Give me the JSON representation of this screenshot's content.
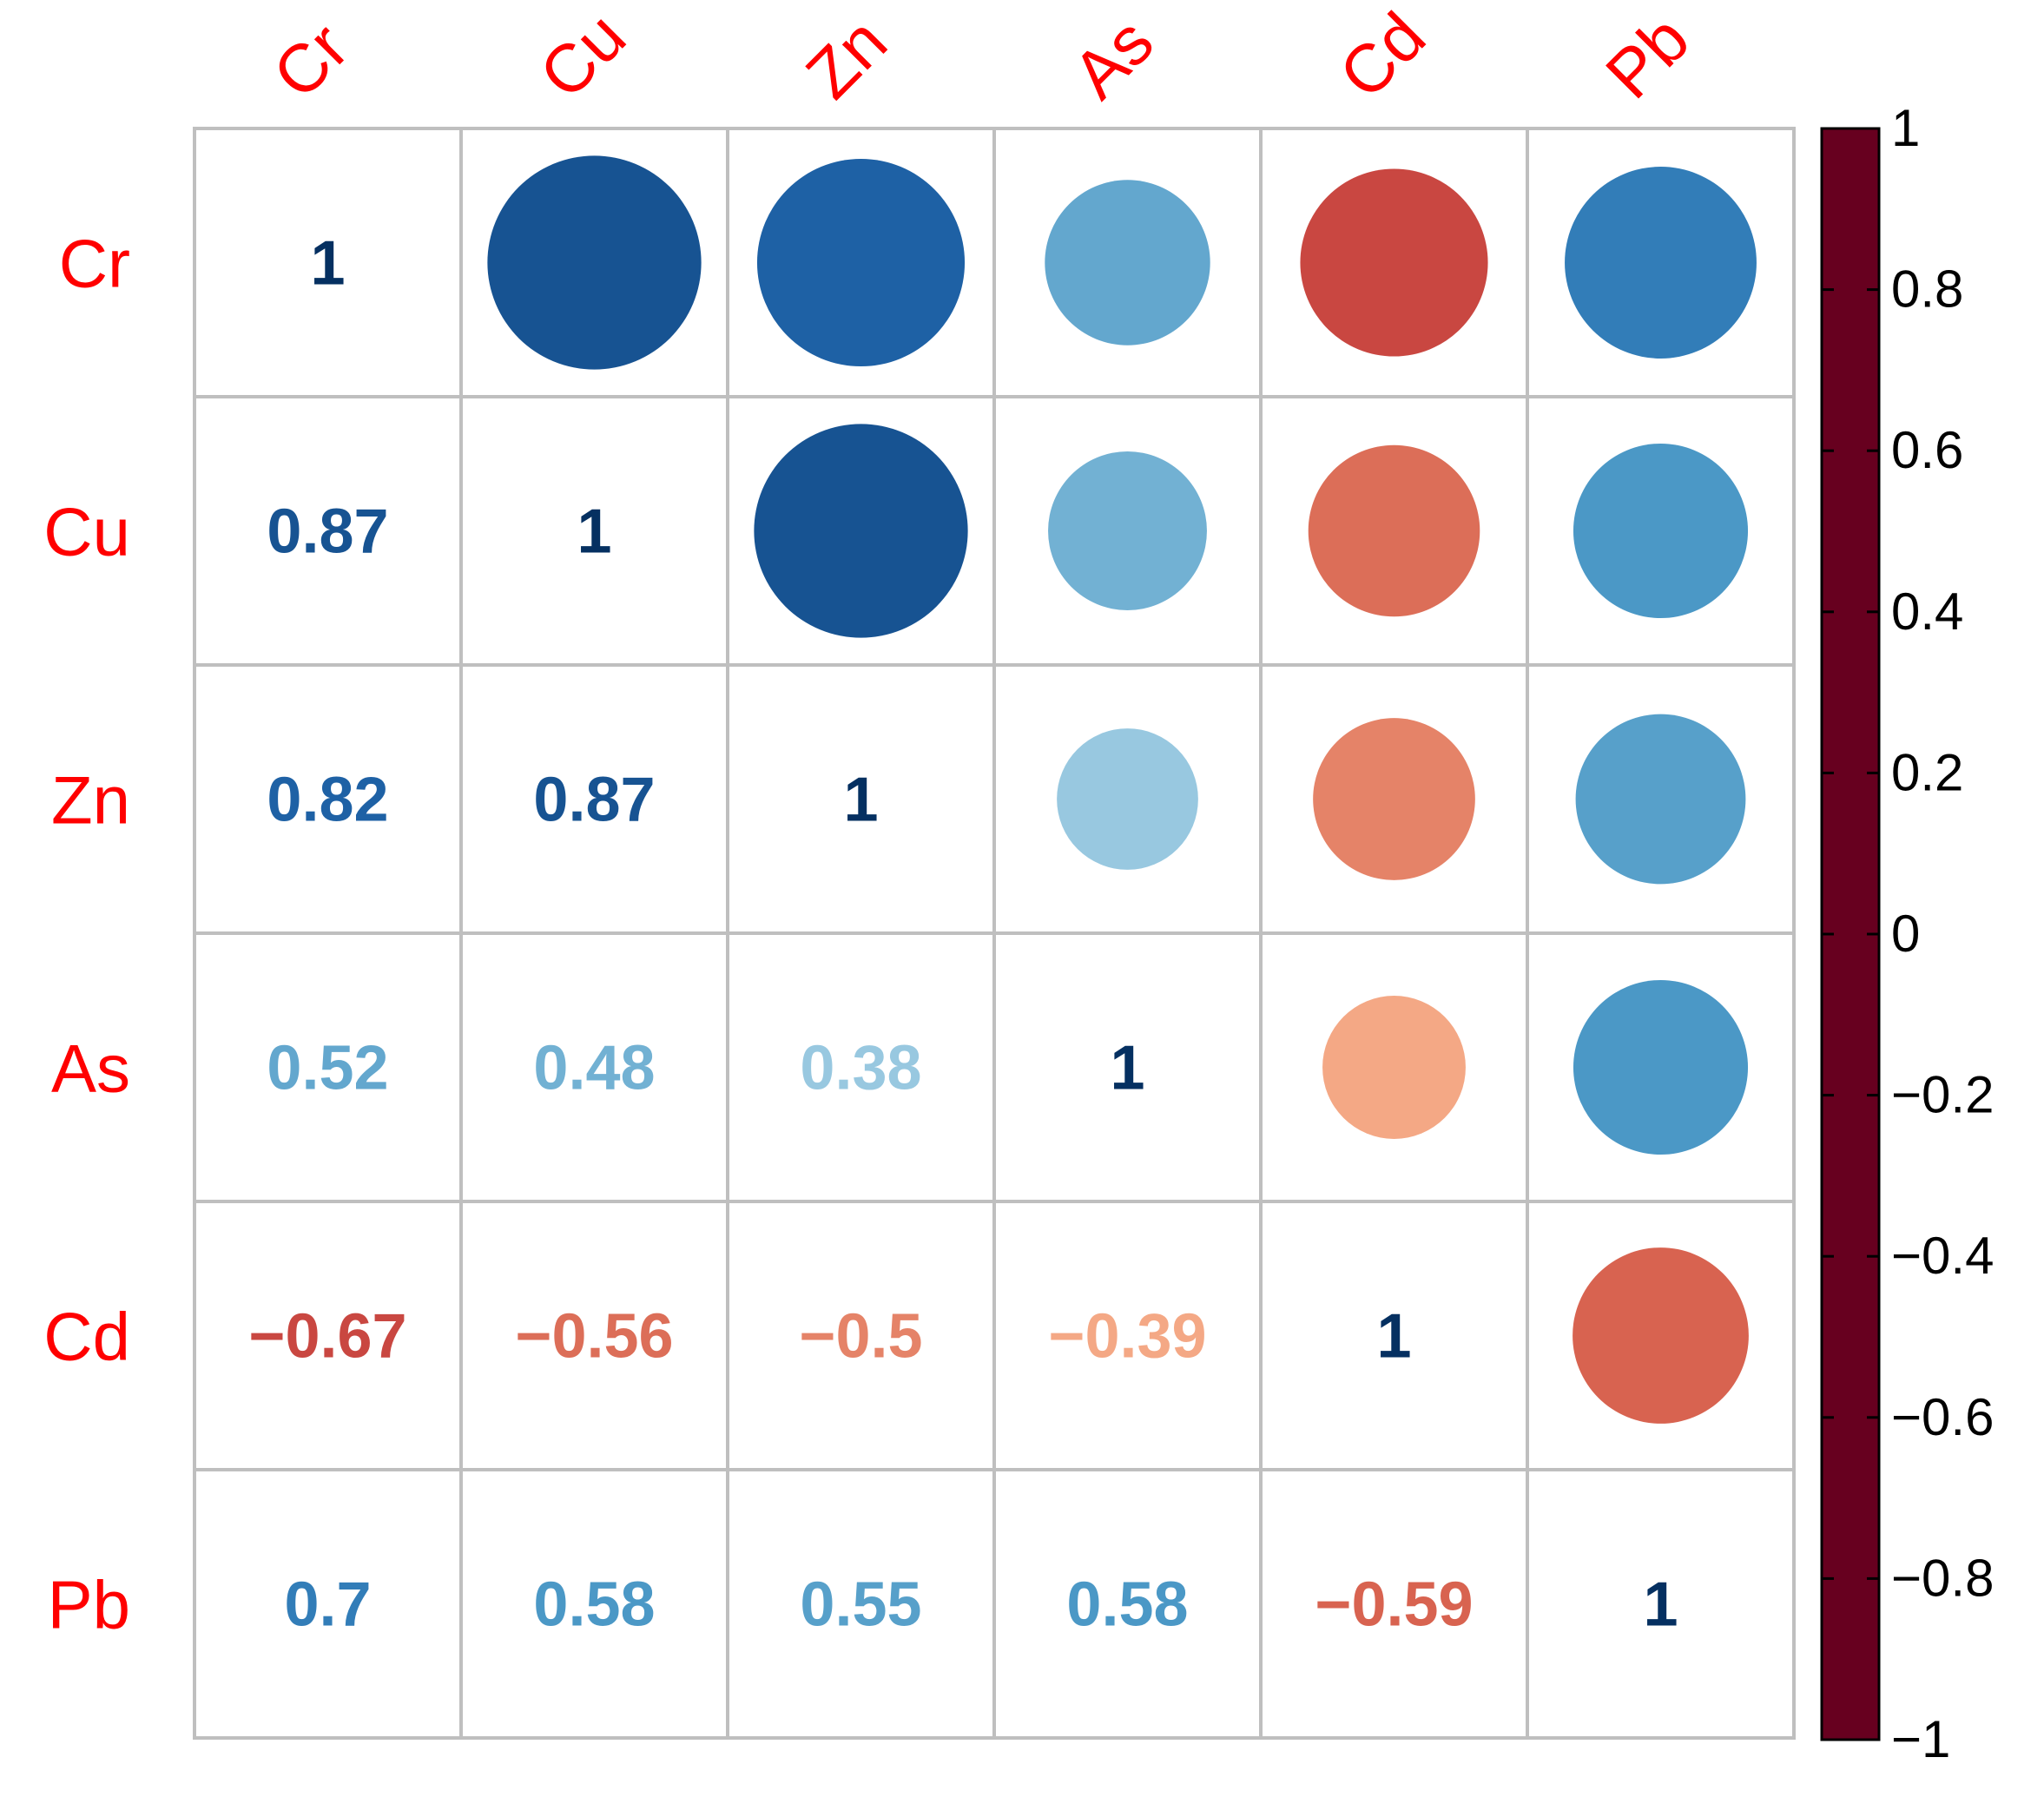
{
  "chart_data": {
    "type": "heatmap",
    "subtype": "correlation-matrix",
    "variables": [
      "Cr",
      "Cu",
      "Zn",
      "As",
      "Cd",
      "Pb"
    ],
    "matrix": [
      [
        1,
        0.87,
        0.82,
        0.52,
        -0.67,
        0.7
      ],
      [
        0.87,
        1,
        0.87,
        0.48,
        -0.56,
        0.58
      ],
      [
        0.82,
        0.87,
        1,
        0.38,
        -0.5,
        0.55
      ],
      [
        0.52,
        0.48,
        0.38,
        1,
        -0.39,
        0.58
      ],
      [
        -0.67,
        -0.56,
        -0.5,
        -0.39,
        1,
        -0.59
      ],
      [
        0.7,
        0.58,
        0.55,
        0.58,
        -0.59,
        1
      ]
    ],
    "lower_labels": [
      [
        {
          "i": 0,
          "j": 0,
          "text": "1"
        }
      ],
      [
        {
          "i": 1,
          "j": 0,
          "text": "0.87"
        },
        {
          "i": 1,
          "j": 1,
          "text": "1"
        }
      ],
      [
        {
          "i": 2,
          "j": 0,
          "text": "0.82"
        },
        {
          "i": 2,
          "j": 1,
          "text": "0.87"
        },
        {
          "i": 2,
          "j": 2,
          "text": "1"
        }
      ],
      [
        {
          "i": 3,
          "j": 0,
          "text": "0.52"
        },
        {
          "i": 3,
          "j": 1,
          "text": "0.48"
        },
        {
          "i": 3,
          "j": 2,
          "text": "0.38"
        },
        {
          "i": 3,
          "j": 3,
          "text": "1"
        }
      ],
      [
        {
          "i": 4,
          "j": 0,
          "text": "−0.67"
        },
        {
          "i": 4,
          "j": 1,
          "text": "−0.56"
        },
        {
          "i": 4,
          "j": 2,
          "text": "−0.5"
        },
        {
          "i": 4,
          "j": 3,
          "text": "−0.39"
        },
        {
          "i": 4,
          "j": 4,
          "text": "1"
        }
      ],
      [
        {
          "i": 5,
          "j": 0,
          "text": "0.7"
        },
        {
          "i": 5,
          "j": 1,
          "text": "0.58"
        },
        {
          "i": 5,
          "j": 2,
          "text": "0.55"
        },
        {
          "i": 5,
          "j": 3,
          "text": "0.58"
        },
        {
          "i": 5,
          "j": 4,
          "text": "−0.59"
        },
        {
          "i": 5,
          "j": 5,
          "text": "1"
        }
      ]
    ],
    "upper_display": "circle",
    "lower_display": "number",
    "colorbar": {
      "range": [
        -1,
        1
      ],
      "ticks": [
        1,
        0.8,
        0.6,
        0.4,
        0.2,
        0,
        -0.2,
        -0.4,
        -0.6,
        -0.8,
        -1
      ],
      "tick_labels": [
        "1",
        "0.8",
        "0.6",
        "0.4",
        "0.2",
        "0",
        "−0.2",
        "−0.4",
        "−0.6",
        "−0.8",
        "−1"
      ],
      "position": "right"
    },
    "label_color": "#ff0000",
    "grid_color": "#bfbfbf",
    "palette_stops": [
      "#67001f",
      "#b2182b",
      "#d6604d",
      "#f4a582",
      "#fddbc7",
      "#ffffff",
      "#d1e5f0",
      "#92c5de",
      "#4393c3",
      "#2166ac",
      "#053061"
    ]
  }
}
